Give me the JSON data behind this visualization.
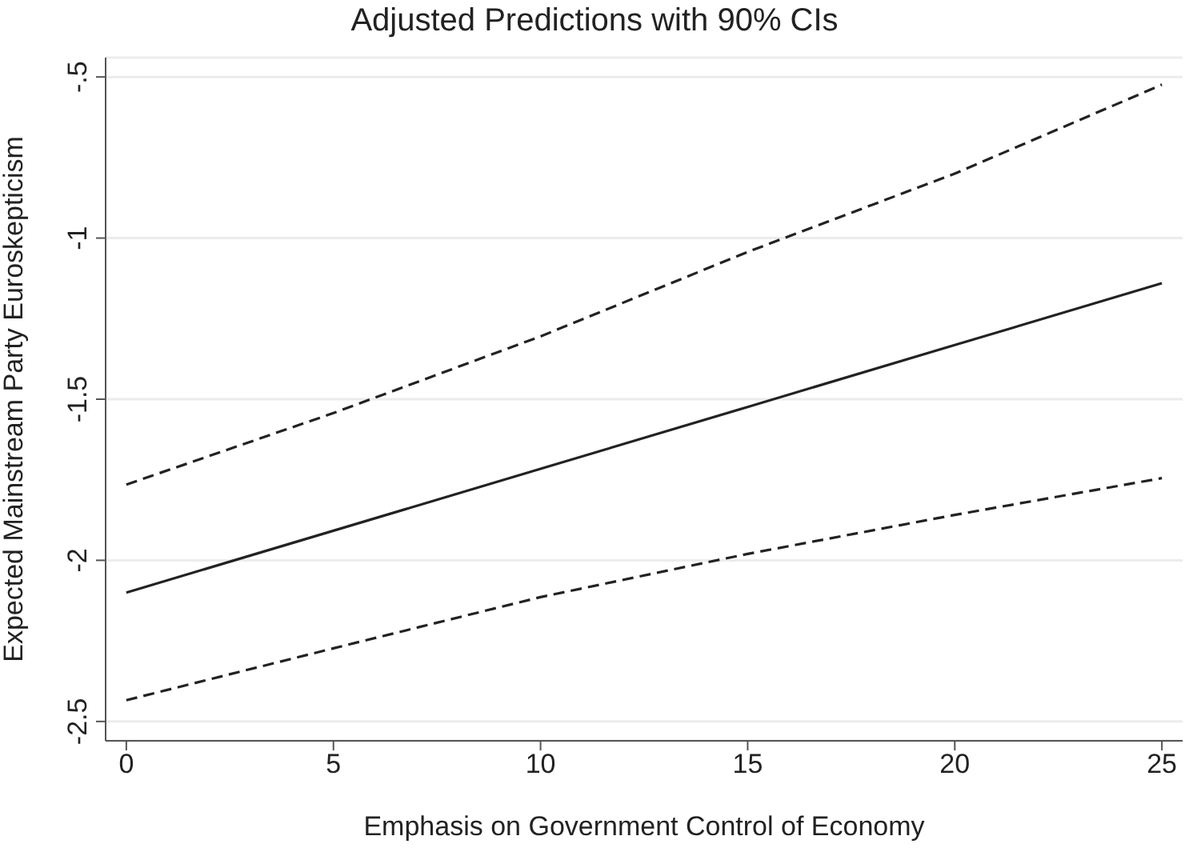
{
  "chart_data": {
    "type": "line",
    "title": "Adjusted Predictions with 90% CIs",
    "xlabel": "Emphasis on Government Control of Economy",
    "ylabel": "Expected Mainstream Party Euroskepticism",
    "x": [
      0,
      5,
      10,
      15,
      20,
      25
    ],
    "series": [
      {
        "color": "#222222",
        "line_style": "solid",
        "values": [
          -2.1,
          -1.908,
          -1.716,
          -1.524,
          -1.332,
          -1.14
        ]
      },
      {
        "color": "#222222",
        "line_style": "dashed",
        "values": [
          -1.765,
          -1.543,
          -1.305,
          -1.043,
          -0.8,
          -0.524
        ]
      },
      {
        "color": "#222222",
        "line_style": "dashed",
        "values": [
          -2.434,
          -2.273,
          -2.114,
          -1.98,
          -1.859,
          -1.745
        ]
      }
    ],
    "xlim": [
      -0.5,
      25.5
    ],
    "xticks": [
      0,
      5,
      10,
      15,
      20,
      25
    ],
    "ylim": [
      -2.56,
      -0.44
    ],
    "yticks": [
      {
        "value": -2.5,
        "label": "-2.5"
      },
      {
        "value": -2,
        "label": "-2"
      },
      {
        "value": -1.5,
        "label": "-1.5"
      },
      {
        "value": -1,
        "label": "-1"
      },
      {
        "value": -0.5,
        "label": "-.5"
      }
    ],
    "grid": "y",
    "marker": "none"
  }
}
